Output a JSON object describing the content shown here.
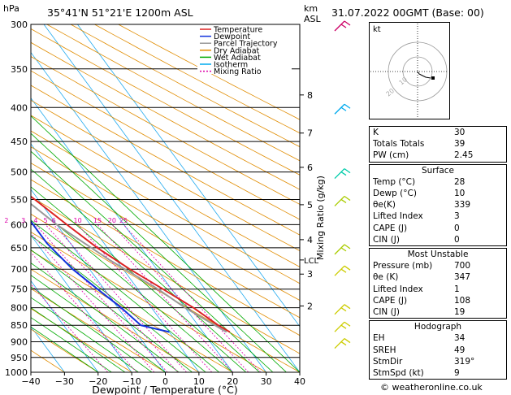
{
  "chart_data": {
    "type": "skew-t",
    "title_left": "35°41'N  51°21'E  1200m  ASL",
    "title_right": "31.07.2022  00GMT  (Base: 00)",
    "ylabel_top": "hPa",
    "km_label_top": "km",
    "km_label_asl": "ASL",
    "xlabel": "Dewpoint / Temperature (°C)",
    "mixing_axis_label": "Mixing Ratio (g/kg)",
    "pressure_levels": [
      300,
      350,
      400,
      450,
      500,
      550,
      600,
      650,
      700,
      750,
      800,
      850,
      900,
      950,
      1000
    ],
    "pressure_tick_labels": [
      "300",
      "350",
      "400",
      "450",
      "500",
      "550",
      "600",
      "650",
      "700",
      "750",
      "800",
      "850",
      "900",
      "950",
      "1000"
    ],
    "x_ticks": [
      -40,
      -30,
      -20,
      -10,
      0,
      10,
      20,
      30,
      40
    ],
    "x_tick_labels": [
      "−40",
      "−30",
      "−20",
      "−10",
      "0",
      "10",
      "20",
      "30",
      "40"
    ],
    "xlim": [
      -40,
      40
    ],
    "km_ticks": [
      {
        "p": 383,
        "label": "8"
      },
      {
        "p": 437,
        "label": "7"
      },
      {
        "p": 492,
        "label": "6"
      },
      {
        "p": 560,
        "label": "5"
      },
      {
        "p": 632,
        "label": "4"
      },
      {
        "p": 712,
        "label": "3"
      },
      {
        "p": 795,
        "label": "2"
      }
    ],
    "lcl": {
      "p": 678,
      "label": "LCL"
    },
    "mixing_ratio_labels": [
      {
        "value": 1,
        "label": "1"
      },
      {
        "value": 2,
        "label": "2"
      },
      {
        "value": 3,
        "label": "3"
      },
      {
        "value": 4,
        "label": "4"
      },
      {
        "value": 5,
        "label": "5"
      },
      {
        "value": 6,
        "label": "6"
      },
      {
        "value": 10,
        "label": "10"
      },
      {
        "value": 15,
        "label": "15"
      },
      {
        "value": 20,
        "label": "20"
      },
      {
        "value": 25,
        "label": "25"
      }
    ],
    "legend": [
      {
        "label": "Temperature",
        "color": "#dd2222"
      },
      {
        "label": "Dewpoint",
        "color": "#1133dd"
      },
      {
        "label": "Parcel Trajectory",
        "color": "#999999"
      },
      {
        "label": "Dry Adiabat",
        "color": "#e08c00"
      },
      {
        "label": "Wet Adiabat",
        "color": "#00aa00"
      },
      {
        "label": "Isotherm",
        "color": "#00aaee"
      },
      {
        "label": "Mixing Ratio",
        "color": "#dd00aa"
      }
    ],
    "series": [
      {
        "name": "Temperature",
        "color": "#dd2222",
        "points": [
          [
            367,
            -15.8
          ],
          [
            380,
            -14.5
          ],
          [
            405,
            -15.5
          ],
          [
            420,
            -19
          ],
          [
            450,
            -13
          ],
          [
            500,
            -6
          ],
          [
            550,
            -1
          ],
          [
            600,
            3
          ],
          [
            650,
            7
          ],
          [
            700,
            12
          ],
          [
            750,
            17.5
          ],
          [
            800,
            22.5
          ],
          [
            850,
            26
          ],
          [
            870,
            28
          ]
        ]
      },
      {
        "name": "Dewpoint",
        "color": "#1133dd",
        "points": [
          [
            300,
            -30
          ],
          [
            333,
            -48
          ],
          [
            395,
            -48
          ],
          [
            420,
            -24
          ],
          [
            450,
            -22
          ],
          [
            500,
            -18
          ],
          [
            505,
            -38
          ],
          [
            550,
            -34
          ],
          [
            575,
            -7
          ],
          [
            615,
            -7
          ],
          [
            640,
            -7
          ],
          [
            670,
            -6
          ],
          [
            700,
            -5
          ],
          [
            750,
            -2
          ],
          [
            800,
            1
          ],
          [
            850,
            3
          ],
          [
            870,
            10
          ]
        ]
      },
      {
        "name": "Parcel Trajectory",
        "color": "#999999",
        "points": [
          [
            300,
            -41
          ],
          [
            400,
            -21
          ],
          [
            500,
            -8
          ],
          [
            600,
            0
          ],
          [
            678,
            8
          ],
          [
            750,
            16
          ],
          [
            800,
            20
          ],
          [
            870,
            27
          ]
        ]
      }
    ],
    "wind_barbs": [
      {
        "p": 300,
        "color": "#cc0066"
      },
      {
        "p": 400,
        "color": "#00aaee"
      },
      {
        "p": 500,
        "color": "#00ccaa"
      },
      {
        "p": 550,
        "color": "#aacc00"
      },
      {
        "p": 650,
        "color": "#aacc00"
      },
      {
        "p": 700,
        "color": "#cccc00"
      },
      {
        "p": 800,
        "color": "#cccc00"
      },
      {
        "p": 850,
        "color": "#cccc00"
      },
      {
        "p": 900,
        "color": "#cccc00"
      }
    ]
  },
  "hodograph": {
    "label": "kt",
    "rings": [
      "10",
      "20"
    ]
  },
  "indices": [
    {
      "label": "K",
      "value": "30"
    },
    {
      "label": "Totals Totals",
      "value": "39"
    },
    {
      "label": "PW (cm)",
      "value": "2.45"
    }
  ],
  "surface": {
    "title": "Surface",
    "rows": [
      {
        "label": "Temp (°C)",
        "value": "28"
      },
      {
        "label": "Dewp (°C)",
        "value": "10"
      },
      {
        "label": "θe(K)",
        "value": "339"
      },
      {
        "label": "Lifted Index",
        "value": "3"
      },
      {
        "label": "CAPE (J)",
        "value": "0"
      },
      {
        "label": "CIN (J)",
        "value": "0"
      }
    ]
  },
  "unstable": {
    "title": "Most Unstable",
    "rows": [
      {
        "label": "Pressure (mb)",
        "value": "700"
      },
      {
        "label": "θe (K)",
        "value": "347"
      },
      {
        "label": "Lifted Index",
        "value": "1"
      },
      {
        "label": "CAPE (J)",
        "value": "108"
      },
      {
        "label": "CIN (J)",
        "value": "19"
      }
    ]
  },
  "hodo_table": {
    "title": "Hodograph",
    "rows": [
      {
        "label": "EH",
        "value": "34"
      },
      {
        "label": "SREH",
        "value": "49"
      },
      {
        "label": "StmDir",
        "value": "319°"
      },
      {
        "label": "StmSpd (kt)",
        "value": "9"
      }
    ]
  },
  "footer": "© weatheronline.co.uk"
}
